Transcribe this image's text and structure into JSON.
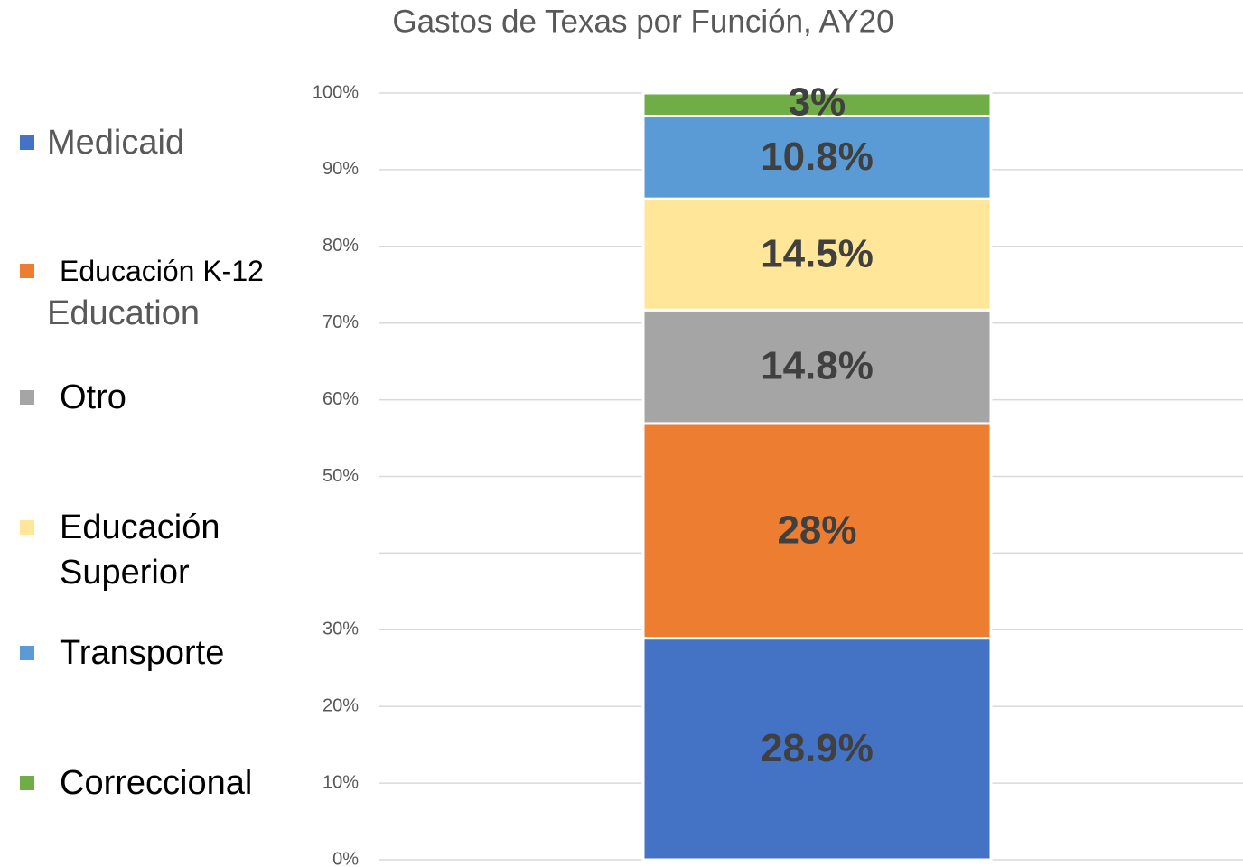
{
  "chart_data": {
    "type": "stacked-bar",
    "title": "Gastos de Texas por Función, AY20",
    "annotations": [
      "Education"
    ],
    "categories": [
      null
    ],
    "series": [
      {
        "name": "Medicaid",
        "color": "#4472c4",
        "values": [
          28.9
        ],
        "value_labels": [
          "28.9%"
        ]
      },
      {
        "name": "Educación K-12",
        "color": "#ed7d31",
        "values": [
          28
        ],
        "value_labels": [
          "28%"
        ]
      },
      {
        "name": "Otro",
        "color": "#a5a5a5",
        "values": [
          14.8
        ],
        "value_labels": [
          "14.8%"
        ]
      },
      {
        "name": "Educación Superior",
        "color": "#ffe699",
        "values": [
          14.5
        ],
        "value_labels": [
          "14.5%"
        ]
      },
      {
        "name": "Transporte",
        "color": "#5b9bd5",
        "values": [
          10.8
        ],
        "value_labels": [
          "10.8%"
        ]
      },
      {
        "name": "Correccional",
        "color": "#70ad47",
        "values": [
          3
        ],
        "value_labels": [
          "3%"
        ]
      }
    ],
    "ylim": [
      0,
      100
    ],
    "yticks": [
      {
        "value": 0,
        "label": "0%"
      },
      {
        "value": 10,
        "label": "10%"
      },
      {
        "value": 20,
        "label": "20%"
      },
      {
        "value": 30,
        "label": "30%"
      },
      {
        "value": 50,
        "label": "50%"
      },
      {
        "value": 60,
        "label": "60%"
      },
      {
        "value": 70,
        "label": "70%"
      },
      {
        "value": 80,
        "label": "80%"
      },
      {
        "value": 90,
        "label": "90%"
      },
      {
        "value": 100,
        "label": "100%"
      }
    ],
    "ygrid": [
      0,
      10,
      20,
      30,
      40,
      50,
      60,
      70,
      80,
      90,
      100
    ],
    "legend": "left"
  }
}
